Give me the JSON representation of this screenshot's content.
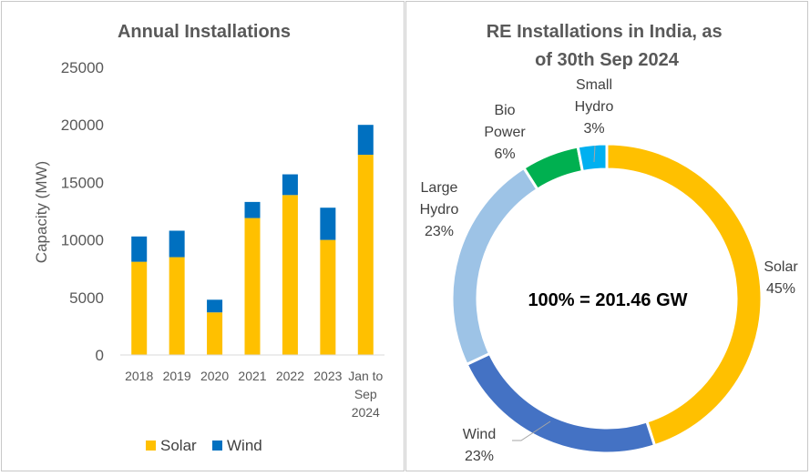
{
  "chart_data": [
    {
      "type": "bar",
      "stacked": true,
      "title": "Annual Installations",
      "ylabel": "Capacity (MW)",
      "xlabel": "",
      "ylim": [
        0,
        25000
      ],
      "yticks": [
        "0",
        "5000",
        "10000",
        "15000",
        "20000",
        "25000"
      ],
      "grid": false,
      "legend_position": "bottom",
      "categories": [
        "2018",
        "2019",
        "2020",
        "2021",
        "2022",
        "2023",
        "Jan to Sep 2024"
      ],
      "series": [
        {
          "name": "Solar",
          "color": "#FFC000",
          "values": [
            8100,
            8500,
            3700,
            11900,
            13900,
            10000,
            17400
          ]
        },
        {
          "name": "Wind",
          "color": "#0070C0",
          "values": [
            2200,
            2300,
            1100,
            1400,
            1800,
            2800,
            2600
          ]
        }
      ]
    },
    {
      "type": "pie",
      "donut": true,
      "title": "RE Installations in India, as of 30th Sep 2024",
      "center_text": "100% = 201.46 GW",
      "slices": [
        {
          "name": "Solar",
          "value": 45,
          "label": "45%",
          "color": "#FFC000"
        },
        {
          "name": "Wind",
          "value": 23,
          "label": "23%",
          "color": "#4472C4"
        },
        {
          "name": "Large Hydro",
          "value": 23,
          "label": "23%",
          "color": "#9DC3E6"
        },
        {
          "name": "Bio Power",
          "value": 6,
          "label": "6%",
          "color": "#00B050"
        },
        {
          "name": "Small Hydro",
          "value": 3,
          "label": "3%",
          "color": "#00B0F0"
        }
      ]
    }
  ]
}
